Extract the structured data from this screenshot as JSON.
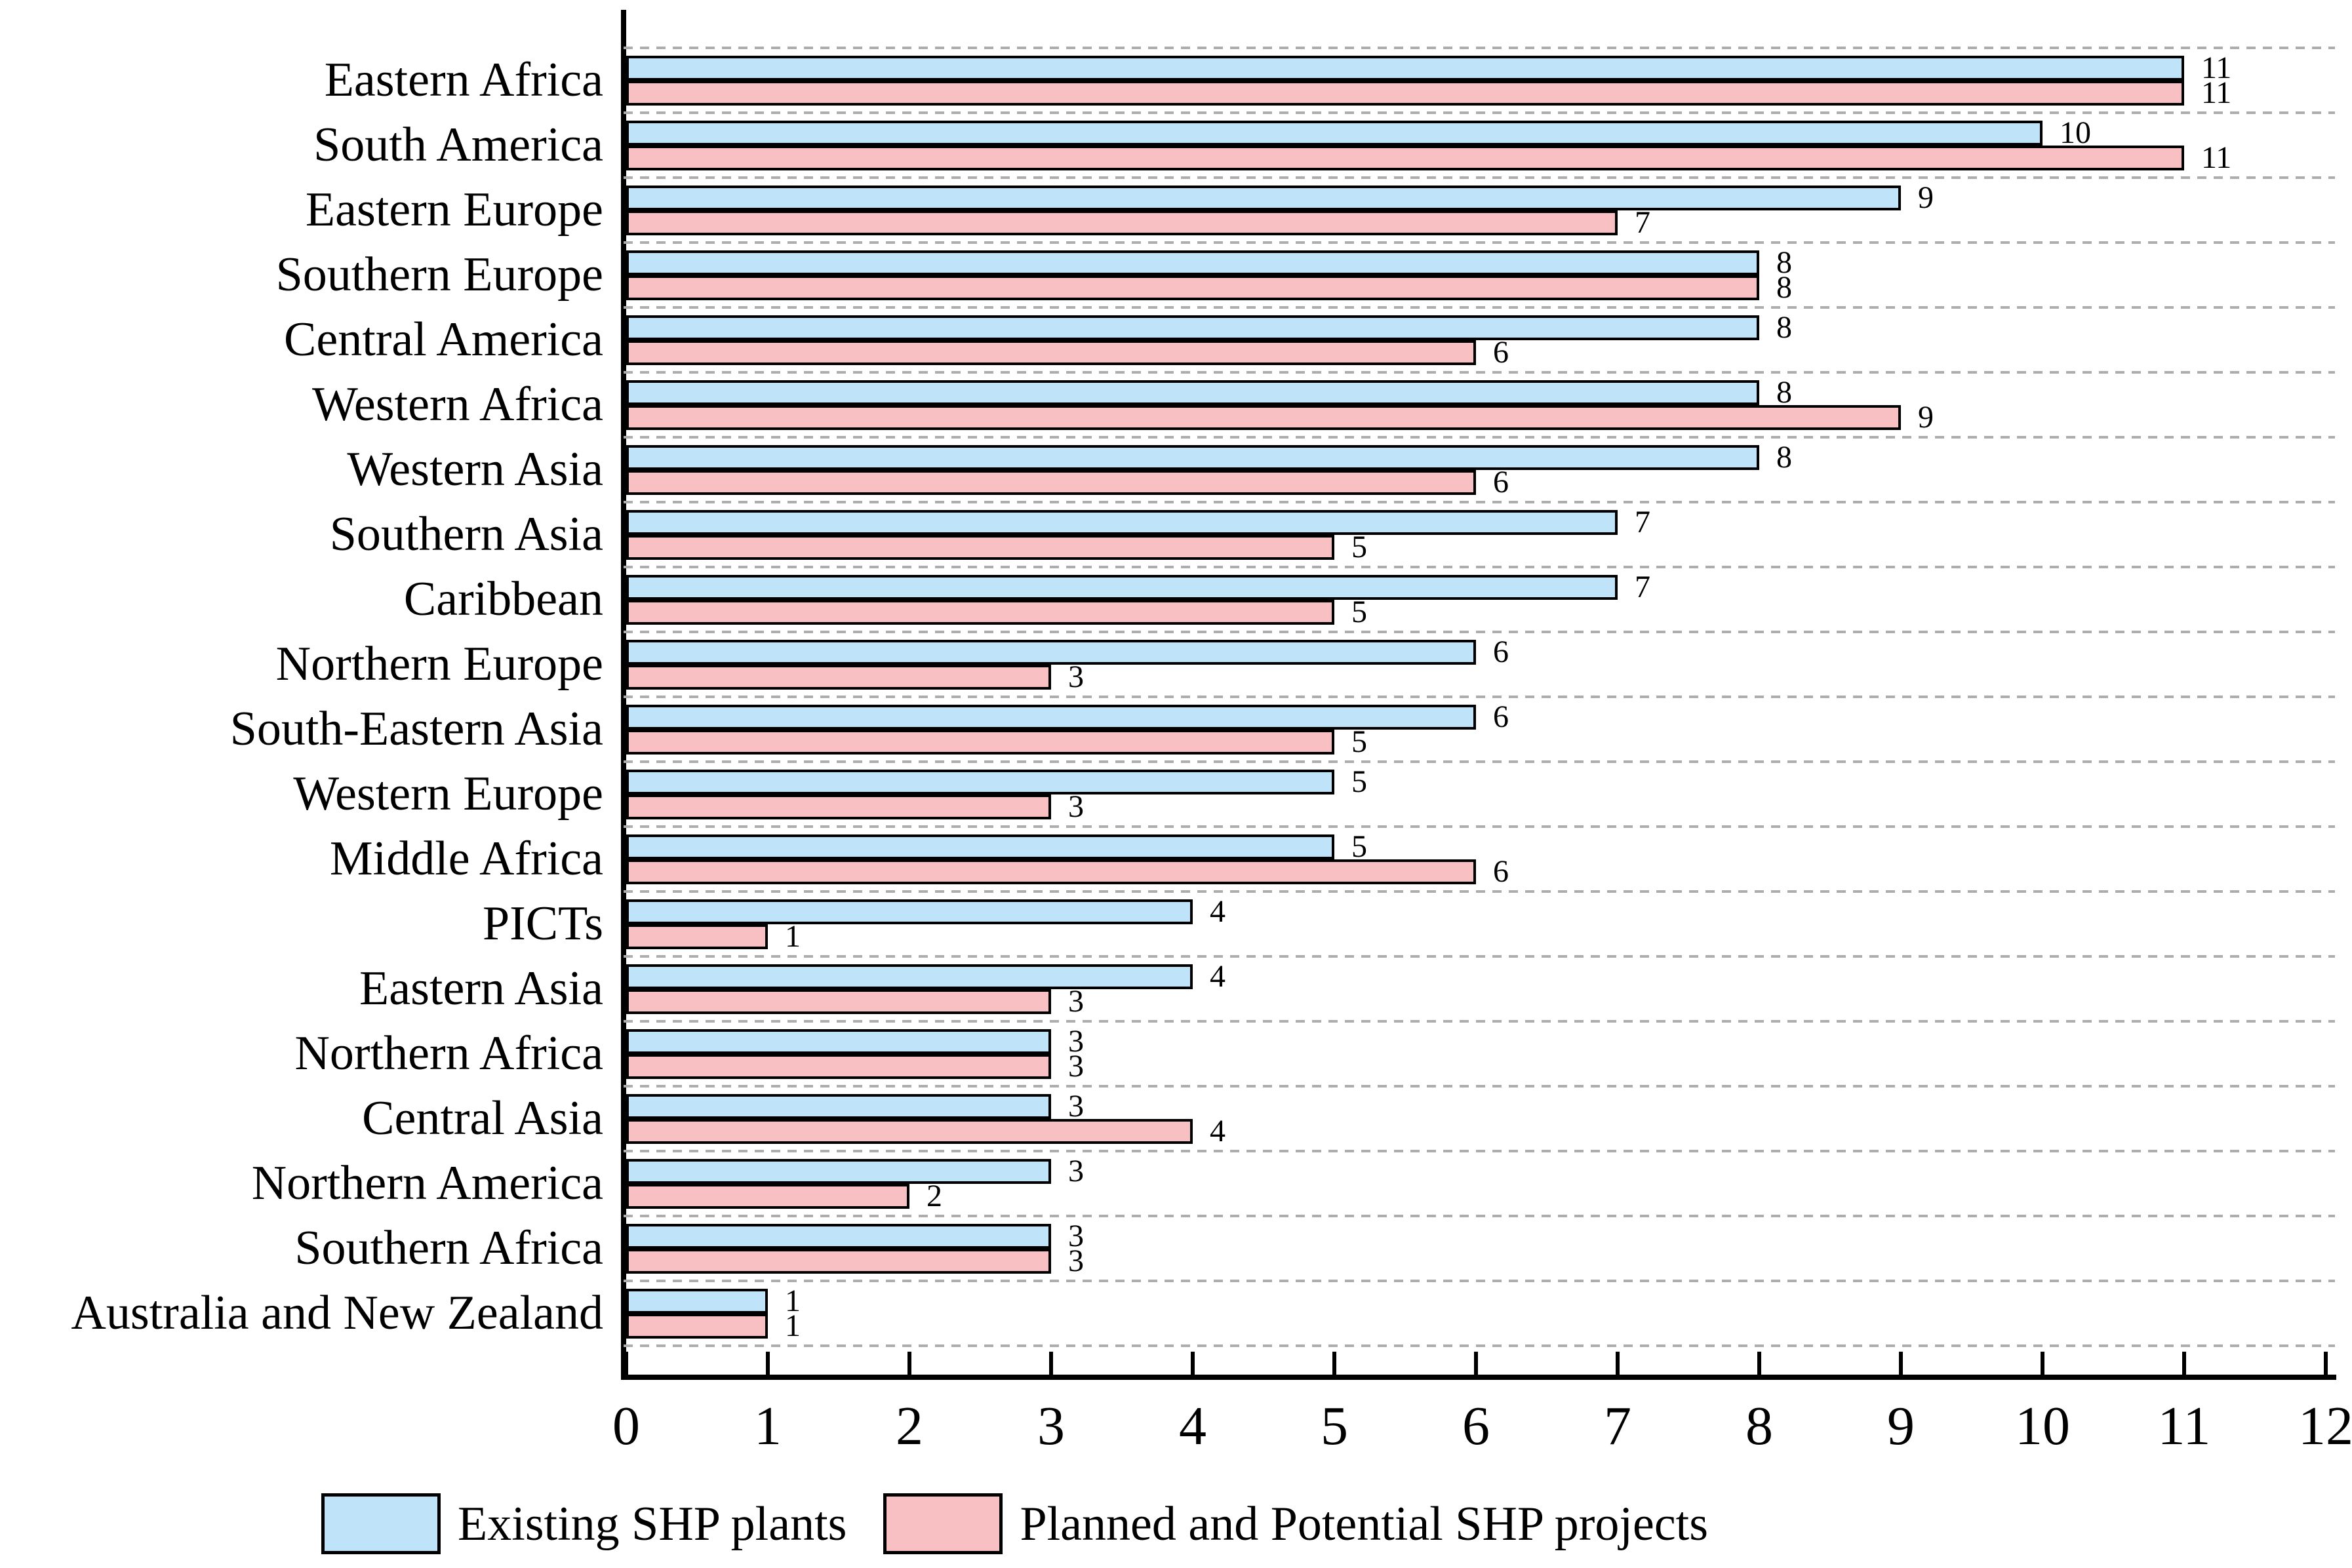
{
  "chart_data": {
    "type": "bar",
    "orientation": "horizontal",
    "title": "",
    "categories": [
      "Eastern Africa",
      "South America",
      "Eastern Europe",
      "Southern Europe",
      "Central America",
      "Western Africa",
      "Western Asia",
      "Southern Asia",
      "Caribbean",
      "Northern Europe",
      "South-Eastern Asia",
      "Western Europe",
      "Middle Africa",
      "PICTs",
      "Eastern Asia",
      "Northern Africa",
      "Central Asia",
      "Northern America",
      "Southern Africa",
      "Australia and New Zealand"
    ],
    "series": [
      {
        "name": "Existing SHP plants",
        "color": "#bfe3f8",
        "values": [
          11,
          10,
          9,
          8,
          8,
          8,
          8,
          7,
          7,
          6,
          6,
          5,
          5,
          4,
          4,
          3,
          3,
          3,
          3,
          1
        ]
      },
      {
        "name": "Planned and Potential SHP projects",
        "color": "#f9c0c3",
        "values": [
          11,
          11,
          7,
          8,
          6,
          9,
          6,
          5,
          5,
          3,
          5,
          3,
          6,
          1,
          3,
          3,
          4,
          2,
          3,
          1
        ]
      }
    ],
    "xlim": [
      0,
      12
    ],
    "x_ticks": [
      0,
      1,
      2,
      3,
      4,
      5,
      6,
      7,
      8,
      9,
      10,
      11,
      12
    ],
    "bar_labels_shown": true,
    "grid": "dashed horizontal separators between categories",
    "legend_position": "bottom",
    "bar_border_color": "#000000"
  }
}
